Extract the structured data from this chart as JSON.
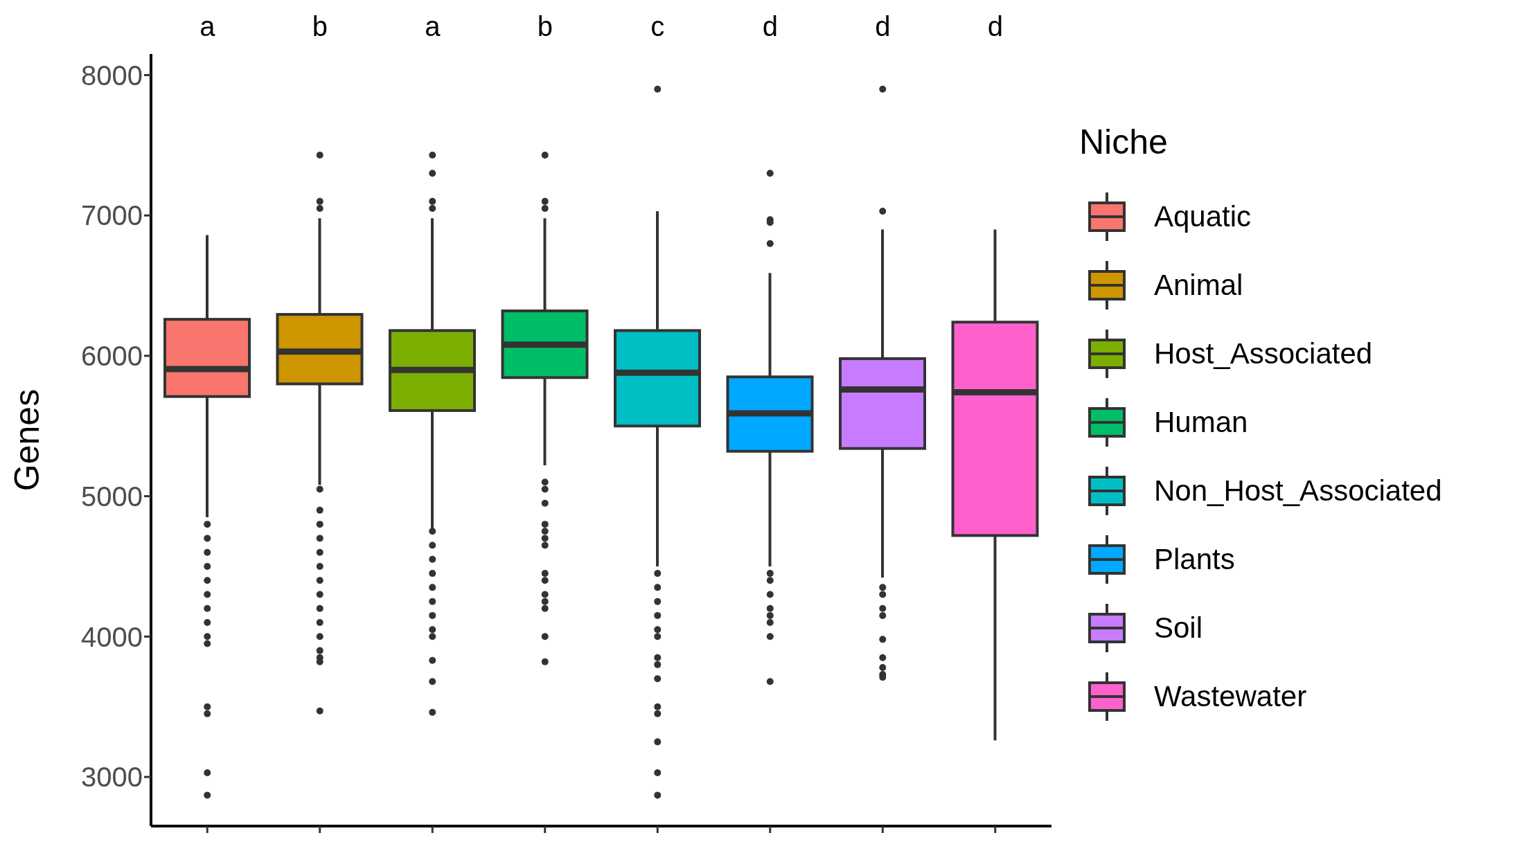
{
  "chart_data": {
    "type": "box",
    "categories": [
      null,
      null,
      null,
      null,
      null,
      null,
      null,
      null
    ],
    "ylabel": "Genes",
    "legend_title": "Niche",
    "legend": "right",
    "grid": false,
    "tick_labels": "y",
    "ylim": [
      2650,
      8150
    ],
    "yticks": [
      3000,
      4000,
      5000,
      6000,
      7000,
      8000
    ],
    "annotations": [
      "a",
      "b",
      "a",
      "b",
      "c",
      "d",
      "d",
      "d"
    ],
    "series": [
      {
        "name": "Aquatic",
        "color": "#f8766d",
        "boxes": [
          {
            "low": 4850,
            "q1": 5710,
            "median": 5905,
            "q3": 6260,
            "high": 6860,
            "outliers": [
              4800,
              4700,
              4600,
              4500,
              4400,
              4300,
              4200,
              4100,
              4000,
              3950,
              3500,
              3450,
              3030,
              2870
            ]
          },
          null,
          null,
          null,
          null,
          null,
          null,
          null
        ]
      },
      {
        "name": "Animal",
        "color": "#cd9600",
        "boxes": [
          null,
          {
            "low": 5080,
            "q1": 5800,
            "median": 6030,
            "q3": 6295,
            "high": 6980,
            "outliers": [
              7430,
              7100,
              7050,
              5050,
              4900,
              4800,
              4700,
              4600,
              4500,
              4400,
              4300,
              4200,
              4100,
              4000,
              3900,
              3850,
              3820,
              3470
            ]
          },
          null,
          null,
          null,
          null,
          null,
          null
        ]
      },
      {
        "name": "Host_Associated",
        "color": "#7cae00",
        "boxes": [
          null,
          null,
          {
            "low": 4770,
            "q1": 5610,
            "median": 5900,
            "q3": 6180,
            "high": 6980,
            "outliers": [
              7430,
              7300,
              7100,
              7050,
              4750,
              4650,
              4550,
              4450,
              4350,
              4250,
              4150,
              4050,
              4000,
              3830,
              3680,
              3460
            ]
          },
          null,
          null,
          null,
          null,
          null
        ]
      },
      {
        "name": "Human",
        "color": "#00be67",
        "boxes": [
          null,
          null,
          null,
          {
            "low": 5220,
            "q1": 5845,
            "median": 6080,
            "q3": 6320,
            "high": 6980,
            "outliers": [
              7430,
              7100,
              7050,
              5100,
              5050,
              4950,
              4800,
              4750,
              4700,
              4650,
              4450,
              4400,
              4300,
              4250,
              4200,
              4000,
              3820
            ]
          },
          null,
          null,
          null,
          null
        ]
      },
      {
        "name": "Non_Host_Associated",
        "color": "#00bfc4",
        "boxes": [
          null,
          null,
          null,
          null,
          {
            "low": 4500,
            "q1": 5500,
            "median": 5880,
            "q3": 6180,
            "high": 7030,
            "outliers": [
              7900,
              4450,
              4350,
              4250,
              4150,
              4050,
              4000,
              3850,
              3800,
              3700,
              3500,
              3450,
              3250,
              3030,
              2870
            ]
          },
          null,
          null,
          null
        ]
      },
      {
        "name": "Plants",
        "color": "#00a9ff",
        "boxes": [
          null,
          null,
          null,
          null,
          null,
          {
            "low": 4500,
            "q1": 5320,
            "median": 5590,
            "q3": 5850,
            "high": 6590,
            "outliers": [
              7300,
              6970,
              6950,
              6800,
              4450,
              4400,
              4300,
              4200,
              4150,
              4100,
              4000,
              3680
            ]
          },
          null,
          null
        ]
      },
      {
        "name": "Soil",
        "color": "#c77cff",
        "boxes": [
          null,
          null,
          null,
          null,
          null,
          null,
          {
            "low": 4420,
            "q1": 5340,
            "median": 5760,
            "q3": 5980,
            "high": 6900,
            "outliers": [
              7900,
              7030,
              4350,
              4300,
              4200,
              4150,
              3980,
              3850,
              3780,
              3730,
              3710
            ]
          },
          null
        ]
      },
      {
        "name": "Wastewater",
        "color": "#ff61cc",
        "boxes": [
          null,
          null,
          null,
          null,
          null,
          null,
          null,
          {
            "low": 3260,
            "q1": 4720,
            "median": 5740,
            "q3": 6240,
            "high": 6900
          }
        ]
      }
    ]
  }
}
